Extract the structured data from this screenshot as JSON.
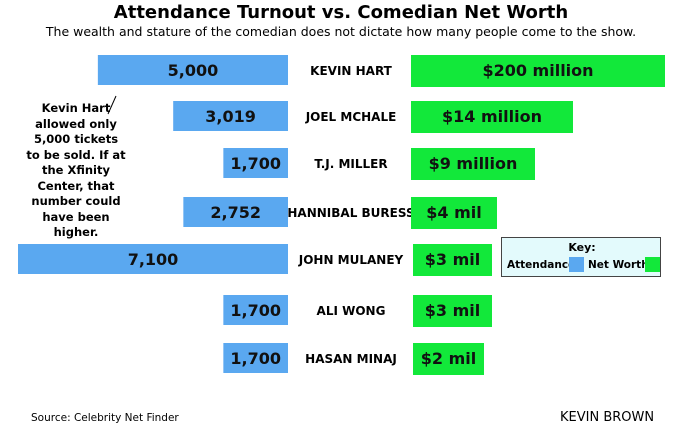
{
  "title": "Attendance Turnout vs. Comedian Net Worth",
  "subtitle": "The wealth and stature of the comedian does not dictate how many people come to the show.",
  "annotation": "Kevin Hart allowed only 5,000 tickets to be sold. If at the Xfinity Center, that number could have been higher.",
  "legend": {
    "title": "Key:",
    "attendance_label": "Attendance",
    "networth_label": "Net Worth"
  },
  "source": "Source: Celebrity Net Finder",
  "author": "KEVIN BROWN",
  "colors": {
    "attendance": "#5aa8f0",
    "networth": "#12e83a",
    "legend_bg": "#e3fafc"
  },
  "chart_data": {
    "type": "bar",
    "categories": [
      "KEVIN HART",
      "JOEL MCHALE",
      "T.J. MILLER",
      "HANNIBAL BURESS",
      "JOHN MULANEY",
      "ALI WONG",
      "HASAN MINAJ"
    ],
    "series": [
      {
        "name": "Attendance",
        "values": [
          5000,
          3019,
          1700,
          2752,
          7100,
          1700,
          1700
        ],
        "labels": [
          "5,000",
          "3,019",
          "1,700",
          "2,752",
          "7,100",
          "1,700",
          "1,700"
        ]
      },
      {
        "name": "Net Worth",
        "values": [
          200,
          14,
          9,
          4,
          3,
          3,
          2
        ],
        "labels": [
          "$200 million",
          "$14 million",
          "$9 million",
          "$4 mil",
          "$3 mil",
          "$3 mil",
          "$2 mil"
        ]
      }
    ]
  }
}
